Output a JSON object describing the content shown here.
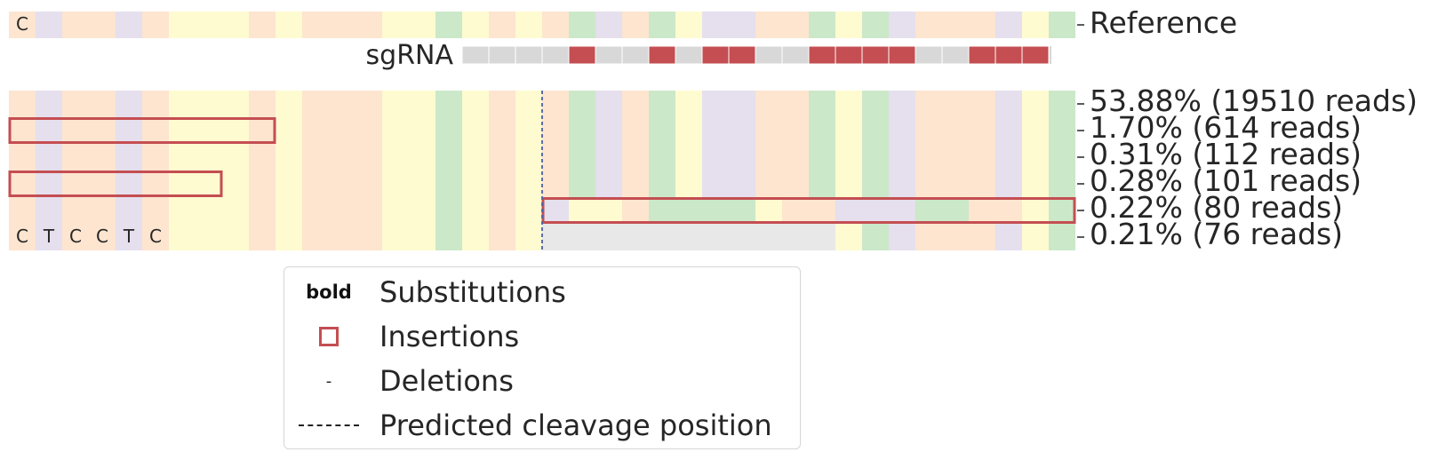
{
  "colors": {
    "A": "#cbe8c9",
    "C": "#fde5cf",
    "G": "#fefbd0",
    "T": "#e5dfee",
    "sgrna_gray": "#d8d8d8",
    "sgrna_red": "#c44e52",
    "deletion_gray": "#e8e8e8",
    "insertion_box": "#c44e52",
    "cleavage_line": "#4c5ea8"
  },
  "chart_data": {
    "type": "heatmap",
    "reference": {
      "label": "Reference",
      "sequence": "CTCCTCGGGCGCCCGGAGCGCATCAGTTCCAGATCCCTGA",
      "visible_letters": [
        "C"
      ]
    },
    "sgrna": {
      "label": "sgRNA",
      "start_index": 17,
      "end_index": 39,
      "mismatch_positions": [
        21,
        24,
        26,
        27,
        30,
        31,
        32,
        33,
        36,
        37,
        38
      ]
    },
    "cleavage_index": 20,
    "rows": [
      {
        "label": "53.88% (19510 reads)",
        "percent": 53.88,
        "reads": 19510,
        "substitutions": [],
        "deletion": null,
        "insertion": null
      },
      {
        "label": "1.70% (614 reads)",
        "percent": 1.7,
        "reads": 614,
        "substitutions": [],
        "deletion": null,
        "insertion": {
          "start": 0,
          "end": 10
        }
      },
      {
        "label": "0.31% (112 reads)",
        "percent": 0.31,
        "reads": 112,
        "substitutions": [
          {
            "index": 22,
            "base": "T"
          }
        ],
        "deletion": null,
        "insertion": null
      },
      {
        "label": "0.28% (101 reads)",
        "percent": 0.28,
        "reads": 101,
        "substitutions": [],
        "deletion": null,
        "insertion": {
          "start": 0,
          "end": 8
        }
      },
      {
        "label": "0.22% (80 reads)",
        "percent": 0.22,
        "reads": 80,
        "sequence_override": {
          "start": 20,
          "bases": "TGGCAAAAGCCTTTAACCG"
        },
        "substitutions": [],
        "deletion": null,
        "insertion": {
          "start": 20,
          "end": 40
        }
      },
      {
        "label": "0.21% (76 reads)",
        "percent": 0.21,
        "reads": 76,
        "visible_letters": [
          "C",
          "T",
          "C",
          "C",
          "T",
          "C"
        ],
        "substitutions": [],
        "deletion": {
          "start": 20,
          "end": 31
        },
        "insertion": null
      }
    ]
  },
  "legend": {
    "items": [
      {
        "key": "bold",
        "label": "Substitutions"
      },
      {
        "key": "insertion-box",
        "label": "Insertions"
      },
      {
        "key": "-",
        "label": "Deletions"
      },
      {
        "key": "dashed-line",
        "label": "Predicted cleavage position"
      }
    ]
  }
}
